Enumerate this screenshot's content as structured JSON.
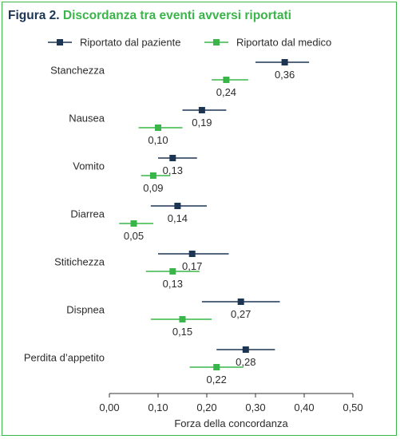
{
  "figure": {
    "label": "Figura 2.",
    "title": "Discordanza tra eventi avversi riportati"
  },
  "colors": {
    "patient": "#1c3553",
    "physician": "#3ab54a",
    "axis": "#333333",
    "text": "#2a2a2a",
    "border": "#3ab54a"
  },
  "chart_data": {
    "type": "forest",
    "xlabel": "Forza della concordanza",
    "xlim": [
      0,
      0.5
    ],
    "xticks": [
      0,
      0.1,
      0.2,
      0.3,
      0.4,
      0.5
    ],
    "xtick_labels": [
      "0,00",
      "0,10",
      "0,20",
      "0,30",
      "0,40",
      "0,50"
    ],
    "legend_position": "top",
    "categories": [
      "Stanchezza",
      "Nausea",
      "Vomito",
      "Diarrea",
      "Stitichezza",
      "Dispnea",
      "Perdita d’appetito"
    ],
    "series": [
      {
        "name": "Riportato dal paziente",
        "marker": "square-dark",
        "values": [
          0.36,
          0.19,
          0.13,
          0.14,
          0.17,
          0.27,
          0.28
        ],
        "value_labels": [
          "0,36",
          "0,19",
          "0,13",
          "0,14",
          "0,17",
          "0,27",
          "0,28"
        ],
        "ci_low": [
          0.3,
          0.15,
          0.1,
          0.085,
          0.1,
          0.19,
          0.22
        ],
        "ci_high": [
          0.41,
          0.24,
          0.18,
          0.2,
          0.245,
          0.35,
          0.34
        ]
      },
      {
        "name": "Riportato dal medico",
        "marker": "square-green",
        "values": [
          0.24,
          0.1,
          0.09,
          0.05,
          0.13,
          0.15,
          0.22
        ],
        "value_labels": [
          "0,24",
          "0,10",
          "0,09",
          "0,05",
          "0,13",
          "0,15",
          "0,22"
        ],
        "ci_low": [
          0.21,
          0.06,
          0.065,
          0.02,
          0.075,
          0.085,
          0.165
        ],
        "ci_high": [
          0.285,
          0.15,
          0.125,
          0.09,
          0.185,
          0.21,
          0.275
        ]
      }
    ]
  }
}
